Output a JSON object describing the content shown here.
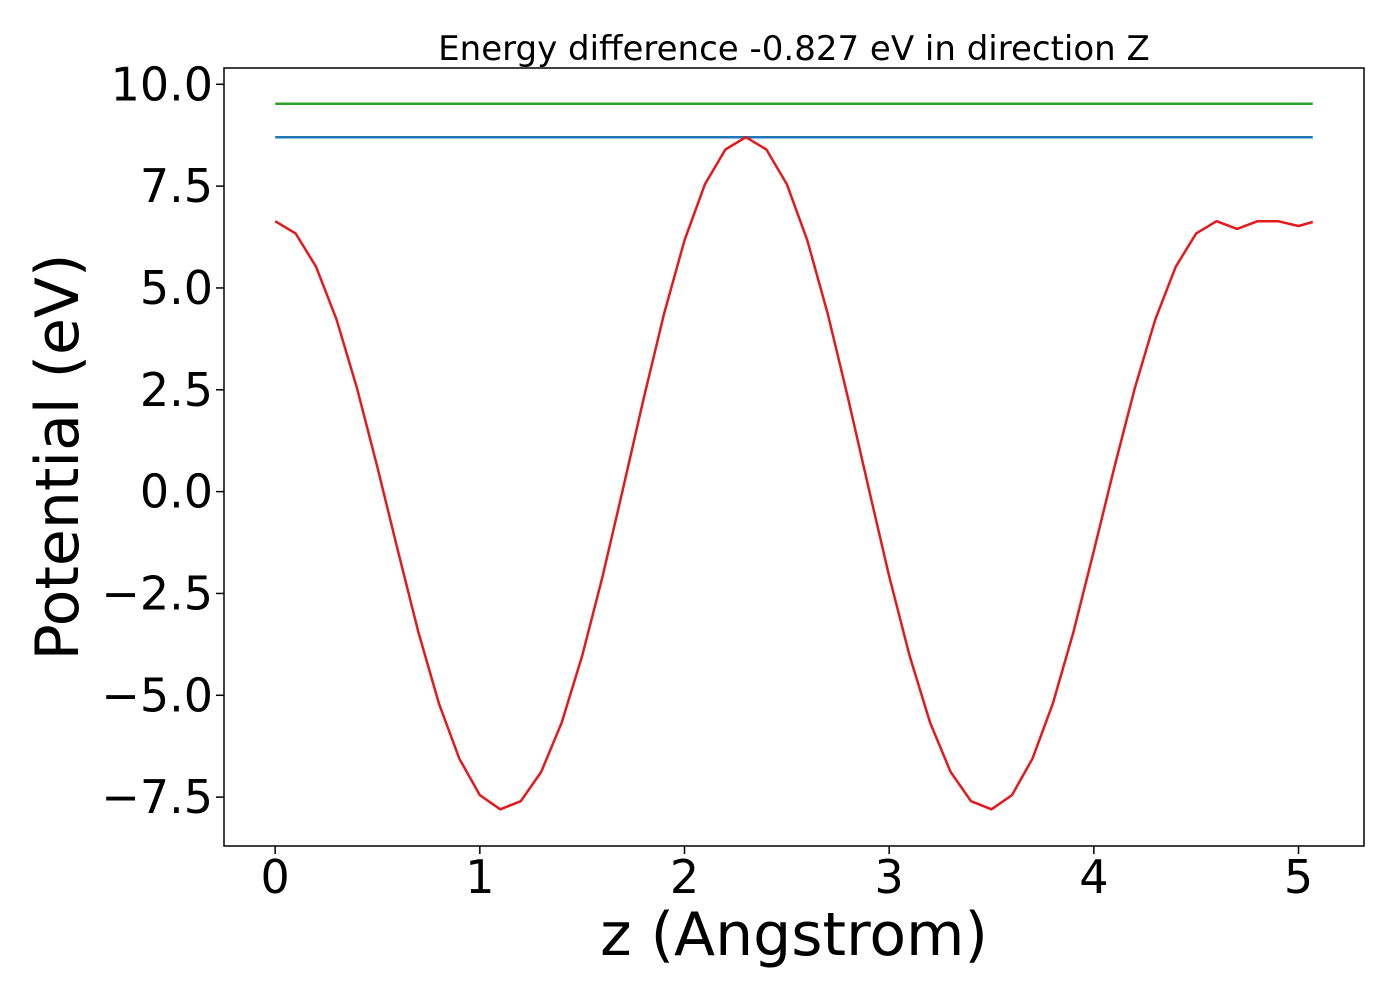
{
  "chart_data": {
    "type": "line",
    "title": "Energy difference -0.827 eV in direction Z",
    "xlabel": "z (Angstrom)",
    "ylabel": "Potential (eV)",
    "xlim": [
      -0.25,
      5.32
    ],
    "ylim": [
      -8.7,
      10.4
    ],
    "x_ticks": [
      0,
      1,
      2,
      3,
      4,
      5
    ],
    "y_ticks": [
      -7.5,
      -5.0,
      -2.5,
      0.0,
      2.5,
      5.0,
      7.5,
      10.0
    ],
    "x_tick_labels": [
      "0",
      "1",
      "2",
      "3",
      "4",
      "5"
    ],
    "y_tick_labels": [
      "−7.5",
      "−5.0",
      "−2.5",
      "0.0",
      "2.5",
      "5.0",
      "7.5",
      "10.0"
    ],
    "grid": false,
    "series": [
      {
        "color": "#1f77b4",
        "x": [
          0.0,
          5.07
        ],
        "y": [
          8.7,
          8.7
        ]
      },
      {
        "color": "#2ca02c",
        "x": [
          0.0,
          5.07
        ],
        "y": [
          9.52,
          9.52
        ]
      },
      {
        "color": "#e31a1c",
        "x": [
          0.0,
          0.1,
          0.2,
          0.3,
          0.4,
          0.5,
          0.6,
          0.7,
          0.8,
          0.9,
          1.0,
          1.1,
          1.2,
          1.3,
          1.4,
          1.5,
          1.6,
          1.7,
          1.8,
          1.9,
          2.0,
          2.1,
          2.2,
          2.3,
          2.4,
          2.5,
          2.6,
          2.7,
          2.8,
          2.9,
          3.0,
          3.1,
          3.2,
          3.3,
          3.4,
          3.5,
          3.6,
          3.7,
          3.8,
          3.9,
          4.0,
          4.1,
          4.2,
          4.3,
          4.4,
          4.5,
          4.6,
          4.7,
          4.8,
          4.9,
          5.0,
          5.07
        ],
        "y": [
          6.64,
          6.34,
          5.52,
          4.22,
          2.54,
          0.59,
          -1.46,
          -3.45,
          -5.2,
          -6.56,
          -7.45,
          -7.8,
          -7.6,
          -6.88,
          -5.67,
          -4.03,
          -2.08,
          0.08,
          2.28,
          4.36,
          6.17,
          7.55,
          8.4,
          8.7,
          8.4,
          7.55,
          6.17,
          4.36,
          2.28,
          0.08,
          -2.08,
          -4.03,
          -5.67,
          -6.88,
          -7.6,
          -7.8,
          -7.45,
          -6.56,
          -5.2,
          -3.45,
          -1.46,
          0.59,
          2.54,
          4.22,
          5.52,
          6.34,
          6.64,
          6.45,
          6.64,
          6.64,
          6.52,
          6.62
        ]
      }
    ]
  }
}
